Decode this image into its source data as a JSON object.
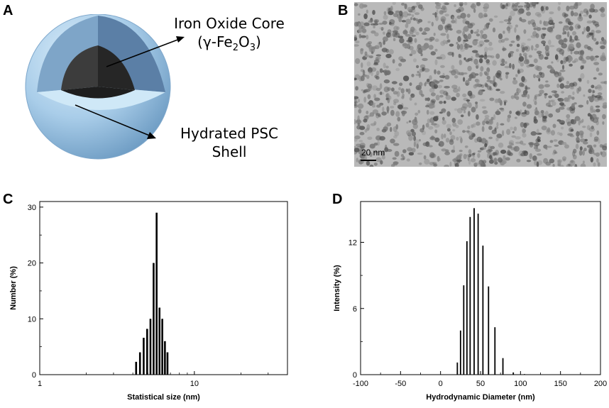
{
  "panels": {
    "A": {
      "letter": "A",
      "core_label_line1": "Iron Oxide Core",
      "core_label_line2": "(γ-Fe",
      "core_label_sub1": "2",
      "core_label_mid": "O",
      "core_label_sub2": "3",
      "core_label_end": ")",
      "shell_label_line1": "Hydrated PSC",
      "shell_label_line2": "Shell"
    },
    "B": {
      "letter": "B",
      "scale_bar_label": "20 nm"
    },
    "C": {
      "letter": "C"
    },
    "D": {
      "letter": "D"
    }
  },
  "colors": {
    "shell_outer": "#a9cde9",
    "shell_inner_face": "#5b7fa6",
    "shell_light_face": "#cfe8f7",
    "core": "#2b2b2b",
    "bars": "#000000"
  },
  "chart_data": [
    {
      "panel": "C",
      "type": "bar",
      "xscale": "log",
      "xlabel": "Statistical size (nm)",
      "ylabel": "Number (%)",
      "xlim": [
        1,
        40
      ],
      "ylim": [
        0,
        31
      ],
      "xticks": [
        1,
        10
      ],
      "xtick_labels": [
        "1",
        "10"
      ],
      "yticks": [
        0,
        10,
        20,
        30
      ],
      "ytick_labels": [
        "0",
        "10",
        "20",
        "30"
      ],
      "x": [
        4.2,
        4.45,
        4.7,
        4.95,
        5.2,
        5.45,
        5.7,
        5.95,
        6.2,
        6.45,
        6.7
      ],
      "values": [
        2.3,
        4.0,
        6.6,
        8.2,
        10.0,
        20.0,
        29.0,
        12.0,
        10.0,
        6.0,
        4.0
      ]
    },
    {
      "panel": "D",
      "type": "bar",
      "xlabel": "Hydrodynamic Diameter (nm)",
      "ylabel": "Intensity (%)",
      "xlim": [
        -100,
        200
      ],
      "ylim": [
        0,
        15.7
      ],
      "xticks": [
        -100,
        -50,
        0,
        50,
        100,
        150,
        200
      ],
      "xtick_labels": [
        "-100",
        "-50",
        "0",
        "50",
        "100",
        "150",
        "200"
      ],
      "yticks": [
        0,
        6,
        12
      ],
      "ytick_labels": [
        "0",
        "6",
        "12"
      ],
      "x": [
        21,
        25,
        29,
        33,
        37,
        42,
        47,
        53,
        60,
        68,
        78,
        91,
        105
      ],
      "values": [
        1.1,
        4.0,
        8.1,
        12.1,
        14.3,
        15.1,
        14.6,
        11.7,
        8.0,
        4.3,
        1.5,
        0.2,
        0.05
      ]
    }
  ]
}
